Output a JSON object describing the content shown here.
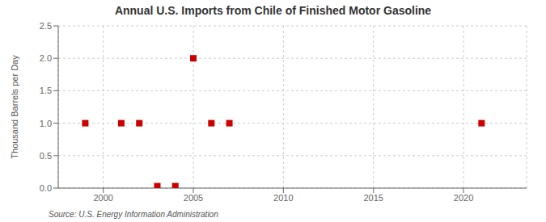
{
  "chart_data": {
    "type": "scatter",
    "title": "Annual U.S. Imports from Chile of Finished Motor Gasoline",
    "ylabel": "Thousand Barrels per Day",
    "annotations": [
      "Source: U.S. Energy Information Administration"
    ],
    "x": [
      1999,
      2001,
      2002,
      2003,
      2004,
      2005,
      2006,
      2007,
      2021
    ],
    "values": [
      1.0,
      1.0,
      1.0,
      0.03,
      0.03,
      2.0,
      1.0,
      1.0,
      1.0
    ],
    "color": "#cc0000",
    "marker": "square",
    "xlim": [
      1997.5,
      2023.5
    ],
    "ylim": [
      0,
      2.5
    ],
    "xticks": [
      2000,
      2005,
      2010,
      2015,
      2020
    ],
    "yticks": [
      {
        "value": 0.0,
        "label": "0.0"
      },
      0.5,
      {
        "value": 1.0,
        "label": "1.0"
      },
      1.5,
      {
        "value": 2.0,
        "label": "2.0"
      },
      2.5
    ],
    "grid": true
  }
}
